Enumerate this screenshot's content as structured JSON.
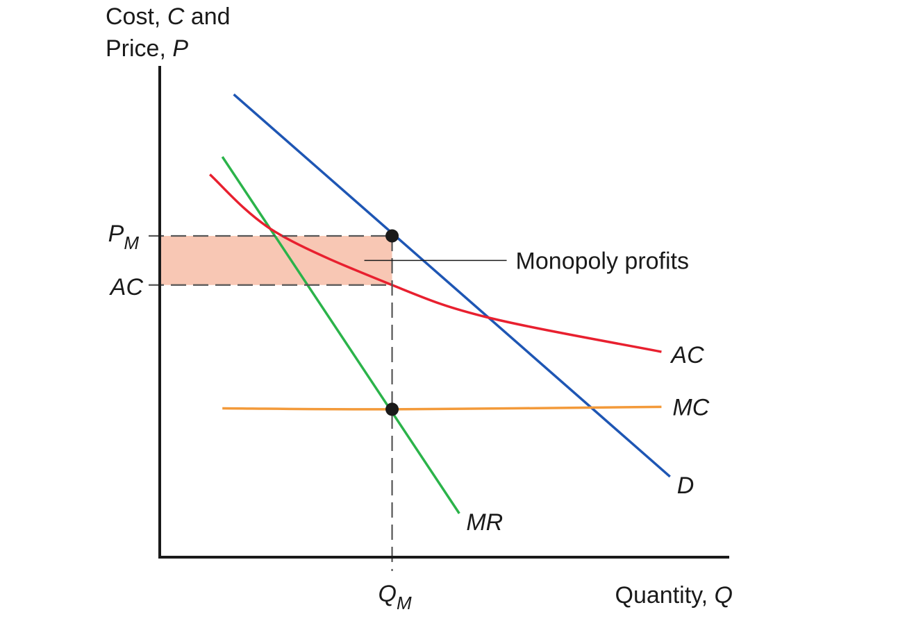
{
  "chart_data": {
    "type": "line",
    "title": "",
    "ylabel": {
      "line1_pre": "Cost, ",
      "line1_var": "C",
      "line1_post": " and",
      "line2_pre": "Price, ",
      "line2_var": "P"
    },
    "xlabel": {
      "pre": "Quantity, ",
      "var": "Q"
    },
    "xlim": [
      0,
      100
    ],
    "ylim": [
      0,
      100
    ],
    "grid": false,
    "series": [
      {
        "name": "D",
        "color": "#1e56b4",
        "curve": "line",
        "x": [
          13,
          89.6
        ],
        "y": [
          94.2,
          16.4
        ]
      },
      {
        "name": "MR",
        "color": "#2bb34a",
        "curve": "line",
        "x": [
          11,
          52.6
        ],
        "y": [
          81.5,
          8.9
        ]
      },
      {
        "name": "AC",
        "color": "#e8202f",
        "curve": "smooth",
        "x": [
          8.8,
          20.3,
          40.8,
          57.6,
          88.1
        ],
        "y": [
          77.9,
          66.2,
          55.4,
          48.8,
          41.8
        ]
      },
      {
        "name": "MC",
        "color": "#f39a3a",
        "curve": "smooth",
        "x": [
          11,
          40.8,
          88.1
        ],
        "y": [
          30.3,
          30.1,
          30.6
        ]
      }
    ],
    "points": [
      {
        "label": "P_M point",
        "x": 40.8,
        "y": 65.4
      },
      {
        "label": "MC = MR point",
        "x": 40.8,
        "y": 30.1
      }
    ],
    "reference_levels": {
      "Q_M": 40.8,
      "P_M": 65.4,
      "AC": 55.4
    },
    "tick_labels": {
      "P_M": {
        "main": "P",
        "sub": "M"
      },
      "AC": {
        "main": "AC"
      },
      "Q_M": {
        "main": "Q",
        "sub": "M"
      }
    },
    "shaded_region": {
      "label": "Monopoly profits",
      "color": "#f8c7b4",
      "x": [
        0,
        40.8
      ],
      "y": [
        55.4,
        65.4
      ]
    }
  }
}
